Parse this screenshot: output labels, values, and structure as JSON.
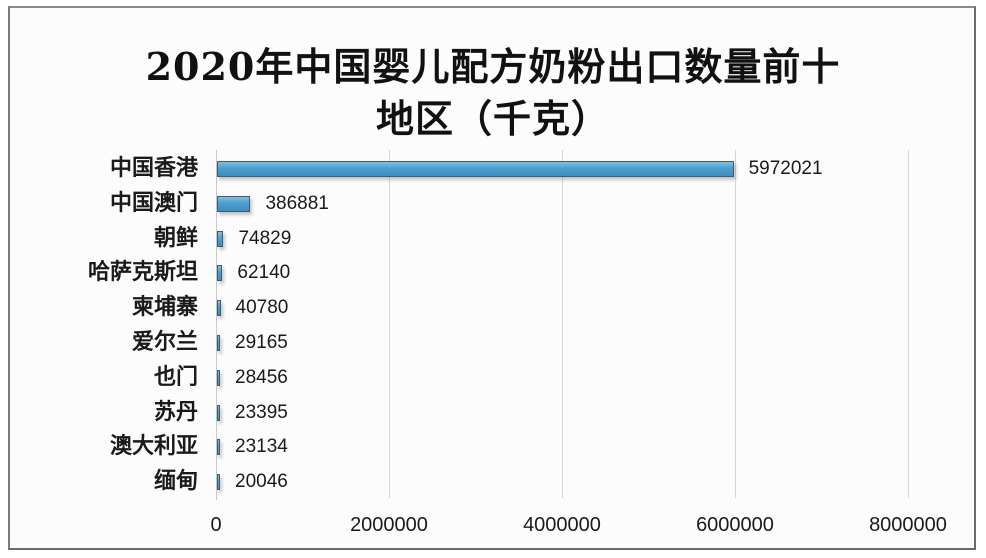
{
  "chart_data": {
    "type": "bar",
    "orientation": "horizontal",
    "title": "2020年中国婴儿配方奶粉出口数量前十地区（千克）",
    "title_lines": [
      "2020年中国婴儿配方奶粉出口数量前十",
      "地区（千克）"
    ],
    "categories": [
      "中国香港",
      "中国澳门",
      "朝鲜",
      "哈萨克斯坦",
      "柬埔寨",
      "爱尔兰",
      "也门",
      "苏丹",
      "澳大利亚",
      "缅甸"
    ],
    "values": [
      5972021,
      386881,
      74829,
      62140,
      40780,
      29165,
      28456,
      23395,
      23134,
      20046
    ],
    "value_labels": [
      "5972021",
      "386881",
      "74829",
      "62140",
      "40780",
      "29165",
      "28456",
      "23395",
      "23134",
      "20046"
    ],
    "xlabel": "",
    "ylabel": "",
    "xlim": [
      0,
      8000000
    ],
    "x_ticks": [
      "0",
      "2000000",
      "4000000",
      "6000000",
      "8000000"
    ],
    "grid": true,
    "legend": null,
    "bar_color": "#4a9fd0"
  }
}
